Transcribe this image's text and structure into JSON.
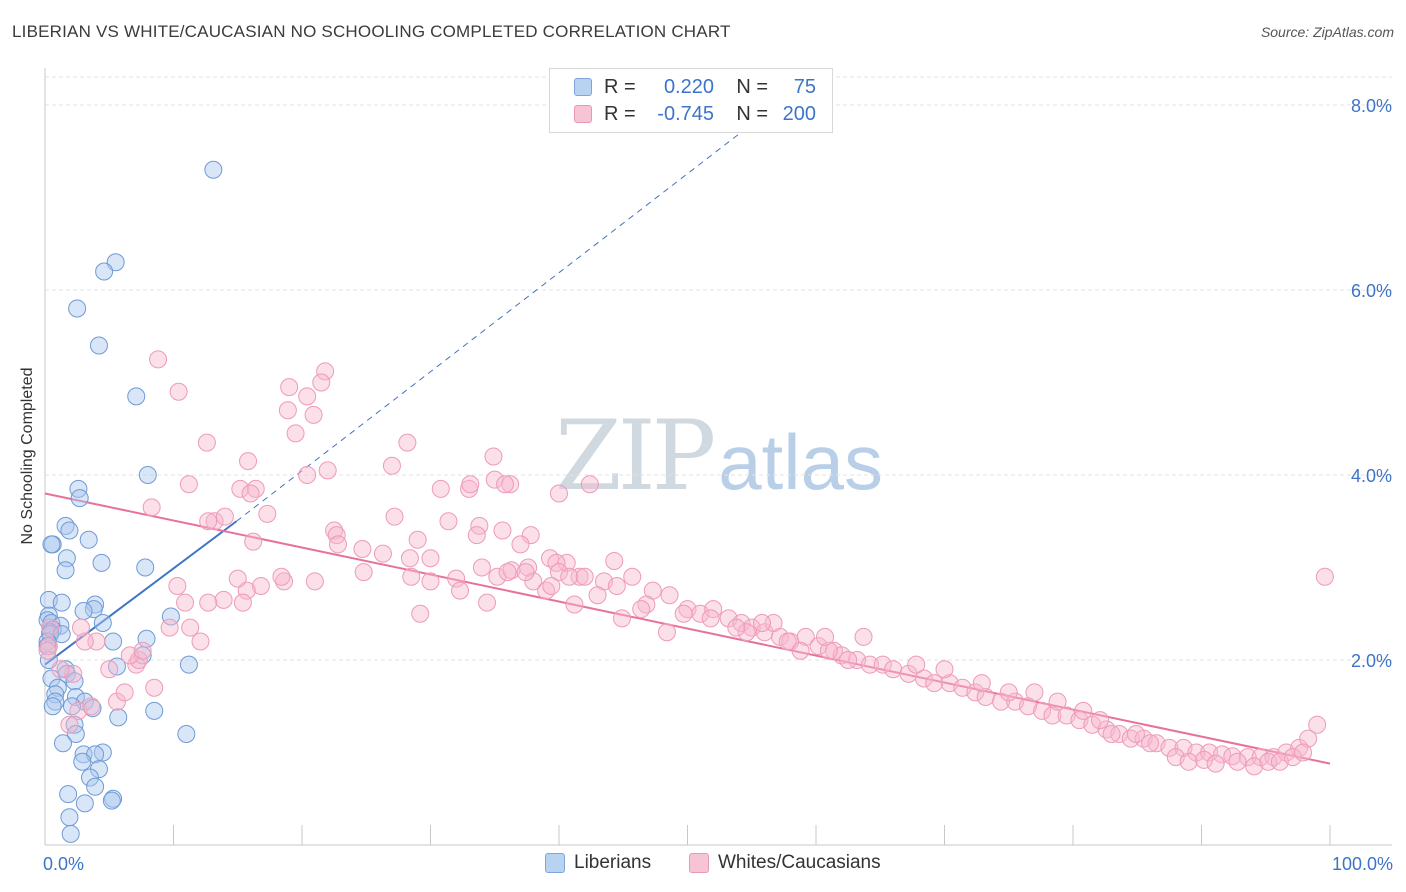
{
  "title": "LIBERIAN VS WHITE/CAUCASIAN NO SCHOOLING COMPLETED CORRELATION CHART",
  "source": "Source: ZipAtlas.com",
  "watermark": {
    "zip": "ZIP",
    "atlas": "atlas"
  },
  "colors": {
    "blue": "#3e74c8",
    "blue_fill": "#b8d2f2",
    "pink": "#e8719b",
    "pink_fill": "#f7bfd1",
    "axis_text": "#3e74c8",
    "grid": "#e6e6e6"
  },
  "legend": {
    "rows": [
      {
        "r_label": "R =",
        "r_value": "0.220",
        "n_label": "N =",
        "n_value": "75",
        "color": "blue"
      },
      {
        "r_label": "R =",
        "r_value": "-0.745",
        "n_label": "N =",
        "n_value": "200",
        "color": "pink"
      }
    ]
  },
  "bottom_legend": [
    {
      "label": "Liberians",
      "color": "blue"
    },
    {
      "label": "Whites/Caucasians",
      "color": "pink"
    }
  ],
  "chart_data": {
    "type": "scatter",
    "title": "LIBERIAN VS WHITE/CAUCASIAN NO SCHOOLING COMPLETED CORRELATION CHART",
    "xlabel": "",
    "ylabel": "No Schooling Completed",
    "xlim": [
      0,
      100
    ],
    "ylim": [
      0,
      8.4
    ],
    "x_tick_labels": [
      "0.0%",
      "100.0%"
    ],
    "y_ticks": [
      2,
      4,
      6,
      8
    ],
    "y_tick_labels": [
      "2.0%",
      "4.0%",
      "6.0%",
      "8.0%"
    ],
    "grid": true,
    "legend_position": "top-center",
    "series": [
      {
        "name": "Liberians",
        "color": "blue",
        "points": [
          [
            13.1,
            7.3
          ],
          [
            5.5,
            6.3
          ],
          [
            4.6,
            6.2
          ],
          [
            2.5,
            5.8
          ],
          [
            4.2,
            5.4
          ],
          [
            7.1,
            4.85
          ],
          [
            8.0,
            4.0
          ],
          [
            2.6,
            3.85
          ],
          [
            2.7,
            3.75
          ],
          [
            1.6,
            3.45
          ],
          [
            1.9,
            3.4
          ],
          [
            0.6,
            3.25
          ],
          [
            0.5,
            3.25
          ],
          [
            3.4,
            3.3
          ],
          [
            1.7,
            3.1
          ],
          [
            4.4,
            3.05
          ],
          [
            7.8,
            3.0
          ],
          [
            1.6,
            2.97
          ],
          [
            0.3,
            2.65
          ],
          [
            1.3,
            2.62
          ],
          [
            3.9,
            2.6
          ],
          [
            3.8,
            2.55
          ],
          [
            3.0,
            2.53
          ],
          [
            0.3,
            2.48
          ],
          [
            0.2,
            2.43
          ],
          [
            0.5,
            2.4
          ],
          [
            1.2,
            2.37
          ],
          [
            9.8,
            2.47
          ],
          [
            4.5,
            2.4
          ],
          [
            0.6,
            2.33
          ],
          [
            0.4,
            2.3
          ],
          [
            0.4,
            2.28
          ],
          [
            1.3,
            2.28
          ],
          [
            0.2,
            2.2
          ],
          [
            0.2,
            2.15
          ],
          [
            5.3,
            2.2
          ],
          [
            7.9,
            2.23
          ],
          [
            7.6,
            2.05
          ],
          [
            0.3,
            2.0
          ],
          [
            11.2,
            1.95
          ],
          [
            5.6,
            1.93
          ],
          [
            1.6,
            1.9
          ],
          [
            1.7,
            1.85
          ],
          [
            0.5,
            1.8
          ],
          [
            2.3,
            1.77
          ],
          [
            1.0,
            1.7
          ],
          [
            0.8,
            1.63
          ],
          [
            2.4,
            1.6
          ],
          [
            0.8,
            1.55
          ],
          [
            3.1,
            1.55
          ],
          [
            0.6,
            1.5
          ],
          [
            2.1,
            1.5
          ],
          [
            3.7,
            1.48
          ],
          [
            8.5,
            1.45
          ],
          [
            5.7,
            1.38
          ],
          [
            2.3,
            1.3
          ],
          [
            2.4,
            1.2
          ],
          [
            11.0,
            1.2
          ],
          [
            1.4,
            1.1
          ],
          [
            3.0,
            0.98
          ],
          [
            4.5,
            1.0
          ],
          [
            3.9,
            0.98
          ],
          [
            2.9,
            0.9
          ],
          [
            4.2,
            0.82
          ],
          [
            3.5,
            0.73
          ],
          [
            3.9,
            0.63
          ],
          [
            1.8,
            0.55
          ],
          [
            5.3,
            0.5
          ],
          [
            5.2,
            0.48
          ],
          [
            3.1,
            0.45
          ],
          [
            1.9,
            0.3
          ],
          [
            2.0,
            0.12
          ]
        ]
      },
      {
        "name": "Whites/Caucasians",
        "color": "pink",
        "points": [
          [
            8.8,
            5.25
          ],
          [
            21.8,
            5.12
          ],
          [
            21.5,
            5.0
          ],
          [
            10.4,
            4.9
          ],
          [
            20.4,
            4.85
          ],
          [
            19.0,
            4.95
          ],
          [
            18.9,
            4.7
          ],
          [
            20.9,
            4.65
          ],
          [
            12.6,
            4.35
          ],
          [
            19.5,
            4.45
          ],
          [
            28.2,
            4.35
          ],
          [
            27.0,
            4.1
          ],
          [
            34.9,
            4.2
          ],
          [
            15.8,
            4.15
          ],
          [
            20.4,
            4.0
          ],
          [
            22.0,
            4.05
          ],
          [
            30.8,
            3.85
          ],
          [
            33.0,
            3.85
          ],
          [
            33.1,
            3.9
          ],
          [
            35.0,
            3.95
          ],
          [
            36.2,
            3.9
          ],
          [
            11.2,
            3.9
          ],
          [
            15.2,
            3.85
          ],
          [
            16.4,
            3.85
          ],
          [
            35.8,
            3.9
          ],
          [
            42.4,
            3.9
          ],
          [
            16.0,
            3.8
          ],
          [
            40.0,
            3.8
          ],
          [
            8.3,
            3.65
          ],
          [
            13.2,
            3.5
          ],
          [
            14.0,
            3.55
          ],
          [
            22.5,
            3.4
          ],
          [
            17.3,
            3.58
          ],
          [
            27.2,
            3.55
          ],
          [
            33.8,
            3.45
          ],
          [
            31.4,
            3.5
          ],
          [
            12.7,
            3.5
          ],
          [
            35.6,
            3.4
          ],
          [
            22.7,
            3.35
          ],
          [
            16.2,
            3.28
          ],
          [
            24.7,
            3.2
          ],
          [
            29.0,
            3.3
          ],
          [
            33.6,
            3.35
          ],
          [
            28.4,
            3.1
          ],
          [
            37.8,
            3.35
          ],
          [
            26.3,
            3.15
          ],
          [
            37.0,
            3.25
          ],
          [
            39.3,
            3.1
          ],
          [
            40.6,
            3.05
          ],
          [
            39.8,
            3.05
          ],
          [
            44.3,
            3.07
          ],
          [
            37.6,
            3.0
          ],
          [
            40.0,
            2.95
          ],
          [
            41.6,
            2.9
          ],
          [
            28.5,
            2.9
          ],
          [
            30.0,
            2.85
          ],
          [
            32.0,
            2.88
          ],
          [
            34.0,
            3.0
          ],
          [
            35.2,
            2.9
          ],
          [
            36.3,
            2.97
          ],
          [
            38.0,
            2.85
          ],
          [
            39.0,
            2.75
          ],
          [
            40.8,
            2.9
          ],
          [
            42.0,
            2.9
          ],
          [
            43.5,
            2.85
          ],
          [
            44.5,
            2.8
          ],
          [
            45.7,
            2.9
          ],
          [
            47.3,
            2.75
          ],
          [
            48.6,
            2.7
          ],
          [
            46.8,
            2.6
          ],
          [
            50.0,
            2.55
          ],
          [
            51.0,
            2.5
          ],
          [
            52.0,
            2.55
          ],
          [
            53.2,
            2.45
          ],
          [
            54.2,
            2.4
          ],
          [
            55.0,
            2.35
          ],
          [
            56.0,
            2.3
          ],
          [
            57.2,
            2.25
          ],
          [
            58.0,
            2.2
          ],
          [
            59.2,
            2.25
          ],
          [
            60.2,
            2.15
          ],
          [
            61.4,
            2.1
          ],
          [
            62.0,
            2.05
          ],
          [
            63.2,
            2.0
          ],
          [
            64.2,
            1.95
          ],
          [
            65.2,
            1.95
          ],
          [
            66.0,
            1.9
          ],
          [
            67.2,
            1.85
          ],
          [
            68.4,
            1.8
          ],
          [
            69.2,
            1.75
          ],
          [
            70.4,
            1.75
          ],
          [
            71.4,
            1.7
          ],
          [
            72.4,
            1.65
          ],
          [
            73.2,
            1.6
          ],
          [
            74.4,
            1.55
          ],
          [
            75.5,
            1.55
          ],
          [
            76.5,
            1.5
          ],
          [
            77.6,
            1.45
          ],
          [
            78.4,
            1.4
          ],
          [
            79.5,
            1.4
          ],
          [
            80.5,
            1.35
          ],
          [
            81.5,
            1.3
          ],
          [
            82.6,
            1.25
          ],
          [
            83.6,
            1.2
          ],
          [
            84.5,
            1.15
          ],
          [
            85.5,
            1.15
          ],
          [
            86.5,
            1.1
          ],
          [
            87.5,
            1.05
          ],
          [
            88.6,
            1.05
          ],
          [
            89.6,
            1.0
          ],
          [
            90.6,
            1.0
          ],
          [
            91.6,
            0.98
          ],
          [
            92.4,
            0.96
          ],
          [
            93.6,
            0.95
          ],
          [
            94.6,
            0.95
          ],
          [
            95.6,
            0.95
          ],
          [
            96.6,
            1.0
          ],
          [
            97.6,
            1.05
          ],
          [
            98.3,
            1.15
          ],
          [
            99.0,
            1.3
          ],
          [
            99.6,
            2.9
          ],
          [
            54.6,
            2.3
          ],
          [
            56.7,
            2.4
          ],
          [
            61.0,
            2.1
          ],
          [
            63.7,
            2.25
          ],
          [
            67.8,
            1.95
          ],
          [
            70.0,
            1.9
          ],
          [
            72.9,
            1.75
          ],
          [
            75.0,
            1.65
          ],
          [
            77.0,
            1.65
          ],
          [
            78.8,
            1.55
          ],
          [
            80.8,
            1.45
          ],
          [
            82.1,
            1.35
          ],
          [
            83.0,
            1.2
          ],
          [
            84.9,
            1.2
          ],
          [
            86.0,
            1.1
          ],
          [
            88.0,
            0.95
          ],
          [
            89.0,
            0.9
          ],
          [
            90.2,
            0.92
          ],
          [
            91.1,
            0.88
          ],
          [
            92.8,
            0.9
          ],
          [
            94.1,
            0.85
          ],
          [
            95.2,
            0.9
          ],
          [
            96.1,
            0.9
          ],
          [
            97.1,
            0.95
          ],
          [
            97.9,
            1.0
          ],
          [
            62.5,
            2.0
          ],
          [
            60.7,
            2.25
          ],
          [
            58.8,
            2.1
          ],
          [
            57.8,
            2.2
          ],
          [
            55.8,
            2.4
          ],
          [
            53.8,
            2.35
          ],
          [
            51.8,
            2.45
          ],
          [
            49.7,
            2.5
          ],
          [
            48.4,
            2.3
          ],
          [
            46.4,
            2.55
          ],
          [
            44.9,
            2.45
          ],
          [
            43.0,
            2.7
          ],
          [
            41.2,
            2.6
          ],
          [
            39.4,
            2.8
          ],
          [
            37.4,
            2.95
          ],
          [
            36.0,
            2.95
          ],
          [
            34.4,
            2.62
          ],
          [
            32.3,
            2.75
          ],
          [
            30.0,
            3.1
          ],
          [
            29.2,
            2.5
          ],
          [
            24.8,
            2.95
          ],
          [
            22.8,
            3.25
          ],
          [
            21.0,
            2.85
          ],
          [
            18.6,
            2.85
          ],
          [
            18.4,
            2.9
          ],
          [
            16.8,
            2.8
          ],
          [
            15.7,
            2.75
          ],
          [
            15.4,
            2.62
          ],
          [
            15.0,
            2.88
          ],
          [
            13.9,
            2.65
          ],
          [
            12.7,
            2.62
          ],
          [
            10.9,
            2.62
          ],
          [
            10.3,
            2.8
          ],
          [
            11.3,
            2.35
          ],
          [
            12.1,
            2.2
          ],
          [
            9.7,
            2.35
          ],
          [
            7.1,
            1.95
          ],
          [
            7.3,
            2.0
          ],
          [
            6.6,
            2.05
          ],
          [
            5.6,
            1.55
          ],
          [
            4.0,
            2.2
          ],
          [
            3.1,
            2.2
          ],
          [
            2.8,
            2.35
          ],
          [
            2.2,
            1.85
          ],
          [
            2.6,
            1.45
          ],
          [
            6.2,
            1.65
          ],
          [
            7.6,
            2.1
          ],
          [
            1.9,
            1.3
          ],
          [
            0.3,
            2.15
          ],
          [
            0.2,
            2.1
          ],
          [
            0.4,
            2.35
          ],
          [
            1.2,
            1.9
          ],
          [
            3.6,
            1.5
          ],
          [
            5.0,
            1.9
          ],
          [
            8.5,
            1.7
          ]
        ]
      }
    ],
    "trend_lines": [
      {
        "series": "Liberians",
        "style": "solid",
        "x": [
          0.0,
          14.9
        ],
        "y": [
          1.95,
          3.5
        ]
      },
      {
        "series": "Liberians",
        "style": "dashed",
        "x": [
          14.9,
          56.0
        ],
        "y": [
          3.5,
          7.9
        ]
      },
      {
        "series": "Whites/Caucasians",
        "style": "solid",
        "x": [
          0.0,
          100.0
        ],
        "y": [
          3.8,
          0.88
        ]
      }
    ]
  }
}
